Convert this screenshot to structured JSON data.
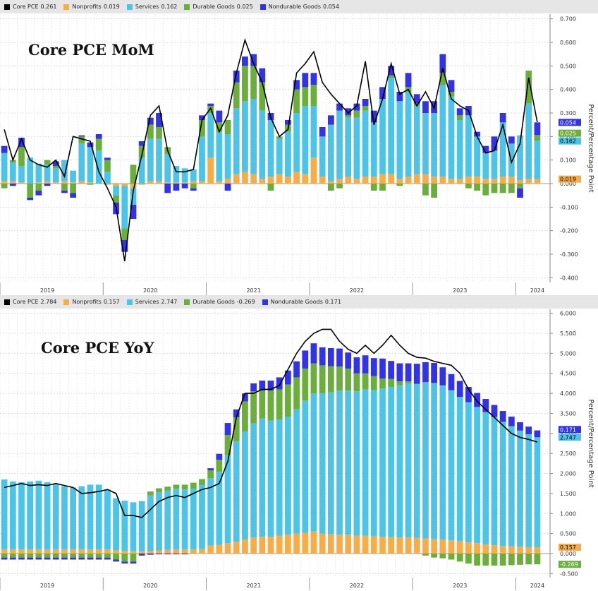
{
  "panels": [
    {
      "legend": [
        {
          "name": "Core PCE",
          "value": "0.261",
          "color": "#000000"
        },
        {
          "name": "Nonprofits",
          "value": "0.019",
          "color": "#f5ad4a"
        },
        {
          "name": "Services",
          "value": "0.162",
          "color": "#4fc3e6"
        },
        {
          "name": "Durable Goods",
          "value": "0.025",
          "color": "#6cad3e"
        },
        {
          "name": "Nondurable Goods",
          "value": "0.054",
          "color": "#3333e0"
        }
      ]
    },
    {
      "legend": [
        {
          "name": "Core PCE",
          "value": "2.784",
          "color": "#000000"
        },
        {
          "name": "Nonprofits",
          "value": "0.157",
          "color": "#f5ad4a"
        },
        {
          "name": "Services",
          "value": "2.747",
          "color": "#4fc3e6"
        },
        {
          "name": "Durable Goods",
          "value": "-0.269",
          "color": "#6cad3e"
        },
        {
          "name": "Nondurable Goods",
          "value": "0.171",
          "color": "#3333e0"
        }
      ]
    }
  ],
  "chart_data": [
    {
      "type": "bar",
      "stacked": true,
      "title": "Core PCE MoM",
      "ylabel": "Percent/Percentage Point",
      "ylim": [
        -0.42,
        0.72
      ],
      "yticks": [
        -0.4,
        -0.3,
        -0.2,
        -0.1,
        0.0,
        0.1,
        0.2,
        0.3,
        0.4,
        0.5,
        0.6,
        0.7
      ],
      "ytick_labels": [
        "-0.400",
        "-0.300",
        "-0.200",
        "-0.100",
        "0.000",
        "0.100",
        "0.200",
        "0.300",
        "0.400",
        "0.500",
        "0.600",
        "0.700"
      ],
      "year_labels": [
        "2019",
        "2020",
        "2021",
        "2022",
        "2023",
        "2024"
      ],
      "year_start_index": [
        0,
        12,
        24,
        36,
        48,
        60
      ],
      "grid": true,
      "legend_position": "top",
      "series": [
        {
          "name": "Nonprofits",
          "color": "#f5ad4a",
          "values": [
            0.01,
            0.01,
            0.005,
            0.0,
            0.005,
            0.01,
            0.005,
            0.01,
            0.005,
            0.01,
            0.005,
            0.0,
            -0.005,
            -0.01,
            -0.01,
            -0.02,
            -0.005,
            0.01,
            0.01,
            0.005,
            0.005,
            0.005,
            0.01,
            0.01,
            0.11,
            0.01,
            0.02,
            0.04,
            0.05,
            0.04,
            0.02,
            0.03,
            0.04,
            0.03,
            0.05,
            0.04,
            0.11,
            0.03,
            0.01,
            0.02,
            0.03,
            0.02,
            0.03,
            0.03,
            0.04,
            0.04,
            0.02,
            0.03,
            0.04,
            0.04,
            0.03,
            0.03,
            0.02,
            0.02,
            0.03,
            0.03,
            0.02,
            0.02,
            0.03,
            0.03,
            0.015,
            0.02,
            0.019
          ]
        },
        {
          "name": "Services",
          "color": "#4fc3e6",
          "values": [
            0.12,
            0.08,
            0.07,
            0.11,
            0.08,
            0.07,
            0.06,
            0.09,
            0.05,
            0.16,
            0.15,
            0.14,
            0.05,
            -0.04,
            -0.18,
            -0.07,
            0.11,
            0.18,
            0.18,
            0.12,
            0.07,
            0.06,
            0.05,
            0.19,
            0.19,
            0.21,
            0.19,
            0.28,
            0.3,
            0.32,
            0.29,
            0.24,
            0.15,
            0.19,
            0.25,
            0.29,
            0.22,
            0.17,
            0.24,
            0.29,
            0.25,
            0.26,
            0.28,
            0.23,
            0.32,
            0.41,
            0.33,
            0.36,
            0.29,
            0.26,
            0.27,
            0.39,
            0.35,
            0.25,
            0.26,
            0.17,
            0.11,
            0.12,
            0.23,
            0.14,
            0.19,
            0.32,
            0.162
          ]
        },
        {
          "name": "Durable Goods",
          "color": "#6cad3e",
          "values": [
            -0.02,
            0.01,
            0.08,
            -0.06,
            -0.03,
            0.02,
            0.01,
            -0.03,
            -0.04,
            0.03,
            -0.005,
            0.05,
            0.05,
            -0.03,
            -0.05,
            0.08,
            0.05,
            0.06,
            0.05,
            0.03,
            0.0,
            0.0,
            -0.02,
            0.07,
            0.03,
            0.04,
            0.06,
            0.11,
            0.15,
            0.14,
            0.12,
            -0.03,
            0.01,
            0.03,
            0.1,
            0.08,
            0.09,
            0.0,
            -0.03,
            -0.02,
            0.01,
            0.03,
            0.02,
            -0.03,
            -0.03,
            0.01,
            -0.01,
            0.02,
            0.01,
            -0.05,
            -0.06,
            0.05,
            0.02,
            0.02,
            -0.02,
            -0.03,
            -0.05,
            -0.04,
            -0.04,
            -0.04,
            -0.02,
            0.14,
            0.025
          ]
        },
        {
          "name": "Nondurable Goods",
          "color": "#3333e0",
          "values": [
            0.03,
            -0.01,
            0.04,
            -0.01,
            -0.02,
            -0.01,
            0.02,
            -0.01,
            -0.02,
            0.005,
            0.02,
            0.02,
            0.01,
            -0.05,
            -0.05,
            -0.06,
            0.02,
            0.03,
            0.06,
            -0.04,
            -0.03,
            -0.02,
            -0.01,
            0.02,
            0.01,
            0.05,
            -0.03,
            0.05,
            0.04,
            0.05,
            0.06,
            0.03,
            0.0,
            0.02,
            0.04,
            0.06,
            0.05,
            0.04,
            0.04,
            0.03,
            0.03,
            0.03,
            0.03,
            0.05,
            0.05,
            0.04,
            0.04,
            0.06,
            0.04,
            0.05,
            0.05,
            0.08,
            0.05,
            0.03,
            0.04,
            0.02,
            0.03,
            0.06,
            0.04,
            0.03,
            -0.04,
            0.0,
            0.054
          ]
        }
      ],
      "total": {
        "name": "Core PCE",
        "color": "#000000",
        "values": [
          0.23,
          0.1,
          0.19,
          0.1,
          0.08,
          0.07,
          0.1,
          0.03,
          0.2,
          0.19,
          0.18,
          0.05,
          -0.02,
          -0.1,
          -0.33,
          -0.03,
          0.12,
          0.29,
          0.33,
          0.14,
          0.05,
          0.05,
          0.06,
          0.27,
          0.32,
          0.22,
          0.29,
          0.47,
          0.61,
          0.51,
          0.43,
          0.28,
          0.2,
          0.23,
          0.47,
          0.51,
          0.56,
          0.43,
          0.38,
          0.34,
          0.3,
          0.33,
          0.52,
          0.25,
          0.36,
          0.51,
          0.38,
          0.4,
          0.33,
          0.39,
          0.32,
          0.49,
          0.36,
          0.33,
          0.31,
          0.2,
          0.13,
          0.14,
          0.25,
          0.09,
          0.17,
          0.45,
          0.261
        ]
      }
    },
    {
      "type": "bar",
      "stacked": true,
      "title": "Core PCE YoY",
      "ylabel": "Percent/Percentage Point",
      "ylim": [
        -0.6,
        6.1
      ],
      "yticks": [
        -0.5,
        0.0,
        0.5,
        1.0,
        1.5,
        2.0,
        2.5,
        3.0,
        3.5,
        4.0,
        4.5,
        5.0,
        5.5,
        6.0
      ],
      "ytick_labels": [
        "-0.500",
        "0.000",
        "0.500",
        "1.000",
        "1.500",
        "2.000",
        "2.500",
        "3.000",
        "3.500",
        "4.000",
        "4.500",
        "5.000",
        "5.500",
        "6.000"
      ],
      "year_labels": [
        "2019",
        "2020",
        "2021",
        "2022",
        "2023",
        "2024"
      ],
      "year_start_index": [
        0,
        12,
        24,
        36,
        48,
        60
      ],
      "grid": true,
      "legend_position": "top",
      "series": [
        {
          "name": "Nonprofits",
          "color": "#f5ad4a",
          "values": [
            0.1,
            0.1,
            0.1,
            0.1,
            0.1,
            0.1,
            0.1,
            0.1,
            0.1,
            0.1,
            0.1,
            0.1,
            0.1,
            0.08,
            0.07,
            0.06,
            0.06,
            0.07,
            0.08,
            0.09,
            0.1,
            0.1,
            0.1,
            0.11,
            0.2,
            0.22,
            0.26,
            0.3,
            0.35,
            0.4,
            0.42,
            0.42,
            0.45,
            0.47,
            0.5,
            0.52,
            0.55,
            0.5,
            0.48,
            0.47,
            0.47,
            0.45,
            0.45,
            0.43,
            0.42,
            0.41,
            0.4,
            0.4,
            0.39,
            0.38,
            0.36,
            0.35,
            0.33,
            0.31,
            0.28,
            0.26,
            0.23,
            0.21,
            0.19,
            0.18,
            0.17,
            0.16,
            0.157
          ]
        },
        {
          "name": "Services",
          "color": "#4fc3e6",
          "values": [
            1.75,
            1.7,
            1.68,
            1.7,
            1.72,
            1.68,
            1.64,
            1.58,
            1.55,
            1.58,
            1.62,
            1.62,
            1.5,
            1.3,
            1.25,
            1.22,
            1.25,
            1.38,
            1.45,
            1.48,
            1.52,
            1.5,
            1.52,
            1.6,
            1.68,
            1.82,
            2.2,
            2.5,
            2.7,
            2.85,
            2.95,
            2.9,
            2.9,
            2.95,
            3.1,
            3.3,
            3.45,
            3.5,
            3.55,
            3.6,
            3.6,
            3.6,
            3.65,
            3.65,
            3.7,
            3.75,
            3.8,
            3.85,
            3.85,
            3.9,
            3.9,
            3.85,
            3.75,
            3.6,
            3.5,
            3.4,
            3.3,
            3.2,
            3.1,
            3.0,
            2.9,
            2.82,
            2.747
          ]
        },
        {
          "name": "Durable Goods",
          "color": "#6cad3e",
          "values": [
            -0.1,
            -0.1,
            -0.1,
            -0.1,
            -0.1,
            -0.1,
            -0.1,
            -0.1,
            -0.1,
            -0.1,
            -0.1,
            -0.1,
            -0.1,
            -0.15,
            -0.2,
            -0.2,
            0.0,
            0.1,
            0.1,
            0.1,
            0.1,
            0.12,
            0.15,
            0.15,
            0.2,
            0.3,
            0.5,
            0.6,
            0.75,
            0.8,
            0.7,
            0.75,
            0.75,
            0.8,
            0.8,
            0.8,
            0.75,
            0.7,
            0.65,
            0.6,
            0.55,
            0.45,
            0.4,
            0.35,
            0.25,
            0.2,
            0.1,
            0.05,
            0.0,
            -0.05,
            -0.1,
            -0.12,
            -0.15,
            -0.2,
            -0.25,
            -0.3,
            -0.3,
            -0.3,
            -0.3,
            -0.29,
            -0.28,
            -0.27,
            -0.269
          ]
        },
        {
          "name": "Nondurable Goods",
          "color": "#3333e0",
          "values": [
            -0.05,
            -0.05,
            -0.05,
            -0.05,
            -0.05,
            -0.05,
            -0.05,
            -0.05,
            -0.05,
            -0.05,
            -0.05,
            -0.05,
            -0.05,
            -0.05,
            -0.05,
            -0.05,
            -0.05,
            -0.03,
            -0.02,
            -0.02,
            -0.02,
            -0.02,
            0.0,
            0.0,
            0.05,
            0.15,
            0.3,
            0.2,
            0.2,
            0.2,
            0.25,
            0.25,
            0.3,
            0.35,
            0.4,
            0.45,
            0.5,
            0.45,
            0.45,
            0.45,
            0.4,
            0.4,
            0.45,
            0.45,
            0.5,
            0.45,
            0.45,
            0.45,
            0.5,
            0.5,
            0.5,
            0.45,
            0.4,
            0.4,
            0.38,
            0.35,
            0.33,
            0.3,
            0.27,
            0.24,
            0.21,
            0.19,
            0.171
          ]
        }
      ],
      "total": {
        "name": "Core PCE",
        "color": "#000000",
        "values": [
          1.65,
          1.7,
          1.75,
          1.7,
          1.72,
          1.7,
          1.75,
          1.7,
          1.65,
          1.5,
          1.52,
          1.55,
          1.6,
          1.5,
          0.95,
          0.95,
          0.9,
          1.1,
          1.3,
          1.4,
          1.45,
          1.4,
          1.5,
          1.6,
          1.65,
          1.75,
          2.3,
          3.4,
          4.0,
          4.0,
          4.1,
          4.1,
          4.2,
          4.6,
          5.0,
          5.3,
          5.5,
          5.6,
          5.6,
          5.3,
          5.1,
          5.0,
          5.2,
          5.0,
          5.2,
          5.45,
          5.2,
          5.0,
          4.9,
          4.88,
          4.8,
          4.75,
          4.7,
          4.5,
          4.1,
          3.8,
          3.6,
          3.4,
          3.2,
          3.0,
          2.9,
          2.85,
          2.784
        ]
      }
    }
  ]
}
